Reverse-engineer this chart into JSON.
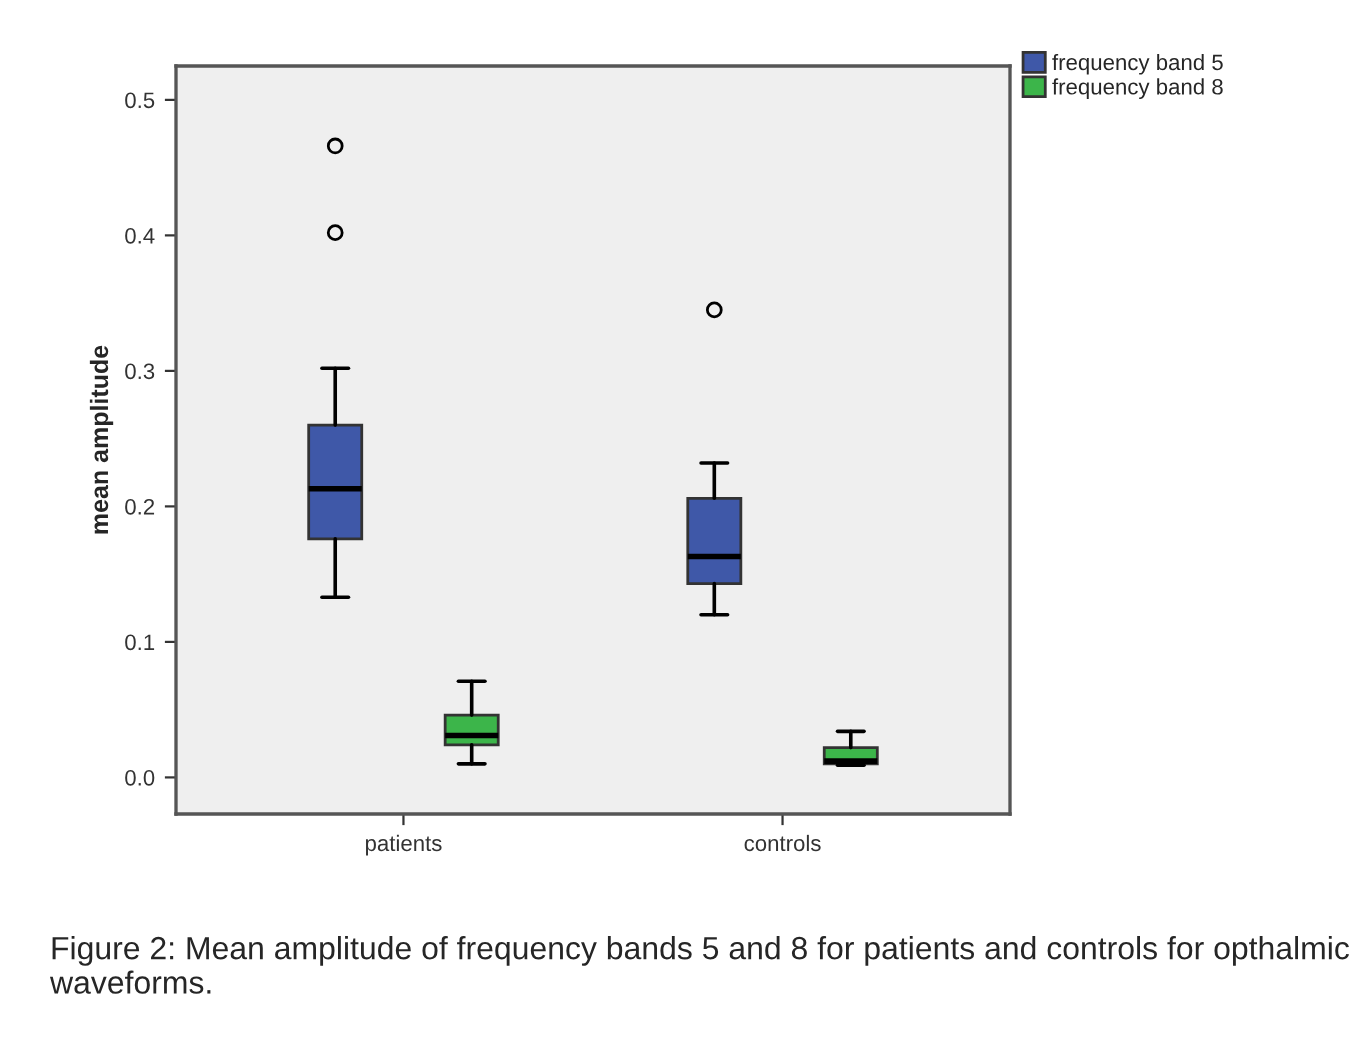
{
  "chart_data": {
    "type": "box",
    "ylabel": "mean amplitude",
    "categories": [
      "patients",
      "controls"
    ],
    "series": [
      {
        "name": "frequency band 5",
        "color": "#3f58a8",
        "boxes": [
          {
            "low": 0.133,
            "q1": 0.176,
            "median": 0.213,
            "q3": 0.26,
            "high": 0.302,
            "outliers": [
              0.402,
              0.466
            ]
          },
          {
            "low": 0.12,
            "q1": 0.143,
            "median": 0.163,
            "q3": 0.206,
            "high": 0.232,
            "outliers": [
              0.345
            ]
          }
        ]
      },
      {
        "name": "frequency band 8",
        "color": "#3cb54a",
        "boxes": [
          {
            "low": 0.01,
            "q1": 0.024,
            "median": 0.031,
            "q3": 0.046,
            "high": 0.071
          },
          {
            "low": 0.009,
            "q1": 0.01,
            "median": 0.012,
            "q3": 0.022,
            "high": 0.034
          }
        ]
      }
    ],
    "ylim": [
      -0.027,
      0.525
    ],
    "yticks": [
      {
        "value": 0,
        "label": "0.0"
      },
      0.1,
      0.2,
      0.3,
      0.4,
      0.5
    ],
    "grid": false,
    "legend": "top right",
    "annotations": [
      "Figure 2: Mean amplitude of frequency bands 5 and 8 for patients and controls for opthalmic waveforms."
    ]
  }
}
